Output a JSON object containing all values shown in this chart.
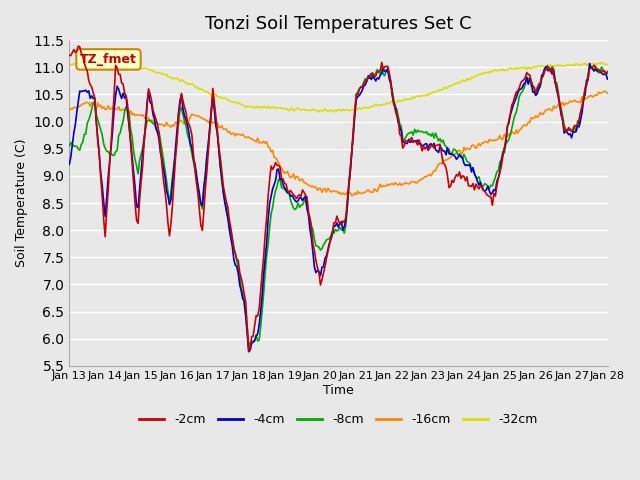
{
  "title": "Tonzi Soil Temperatures Set C",
  "xlabel": "Time",
  "ylabel": "Soil Temperature (C)",
  "ylim": [
    5.5,
    11.5
  ],
  "bg_color": "#e8e8e8",
  "plot_bg": "#e8e8e8",
  "legend_label": "TZ_fmet",
  "series_colors": {
    "-2cm": "#cc0000",
    "-4cm": "#0000cc",
    "-8cm": "#00aa00",
    "-16cm": "#ff8800",
    "-32cm": "#dddd00"
  },
  "x_ticks": [
    "Jan 13",
    "Jan 14",
    "Jan 15",
    "Jan 16",
    "Jan 17",
    "Jan 18",
    "Jan 19",
    "Jan 20",
    "Jan 21",
    "Jan 22",
    "Jan 23",
    "Jan 24",
    "Jan 25",
    "Jan 26",
    "Jan 27",
    "Jan 28"
  ],
  "n_points": 361
}
